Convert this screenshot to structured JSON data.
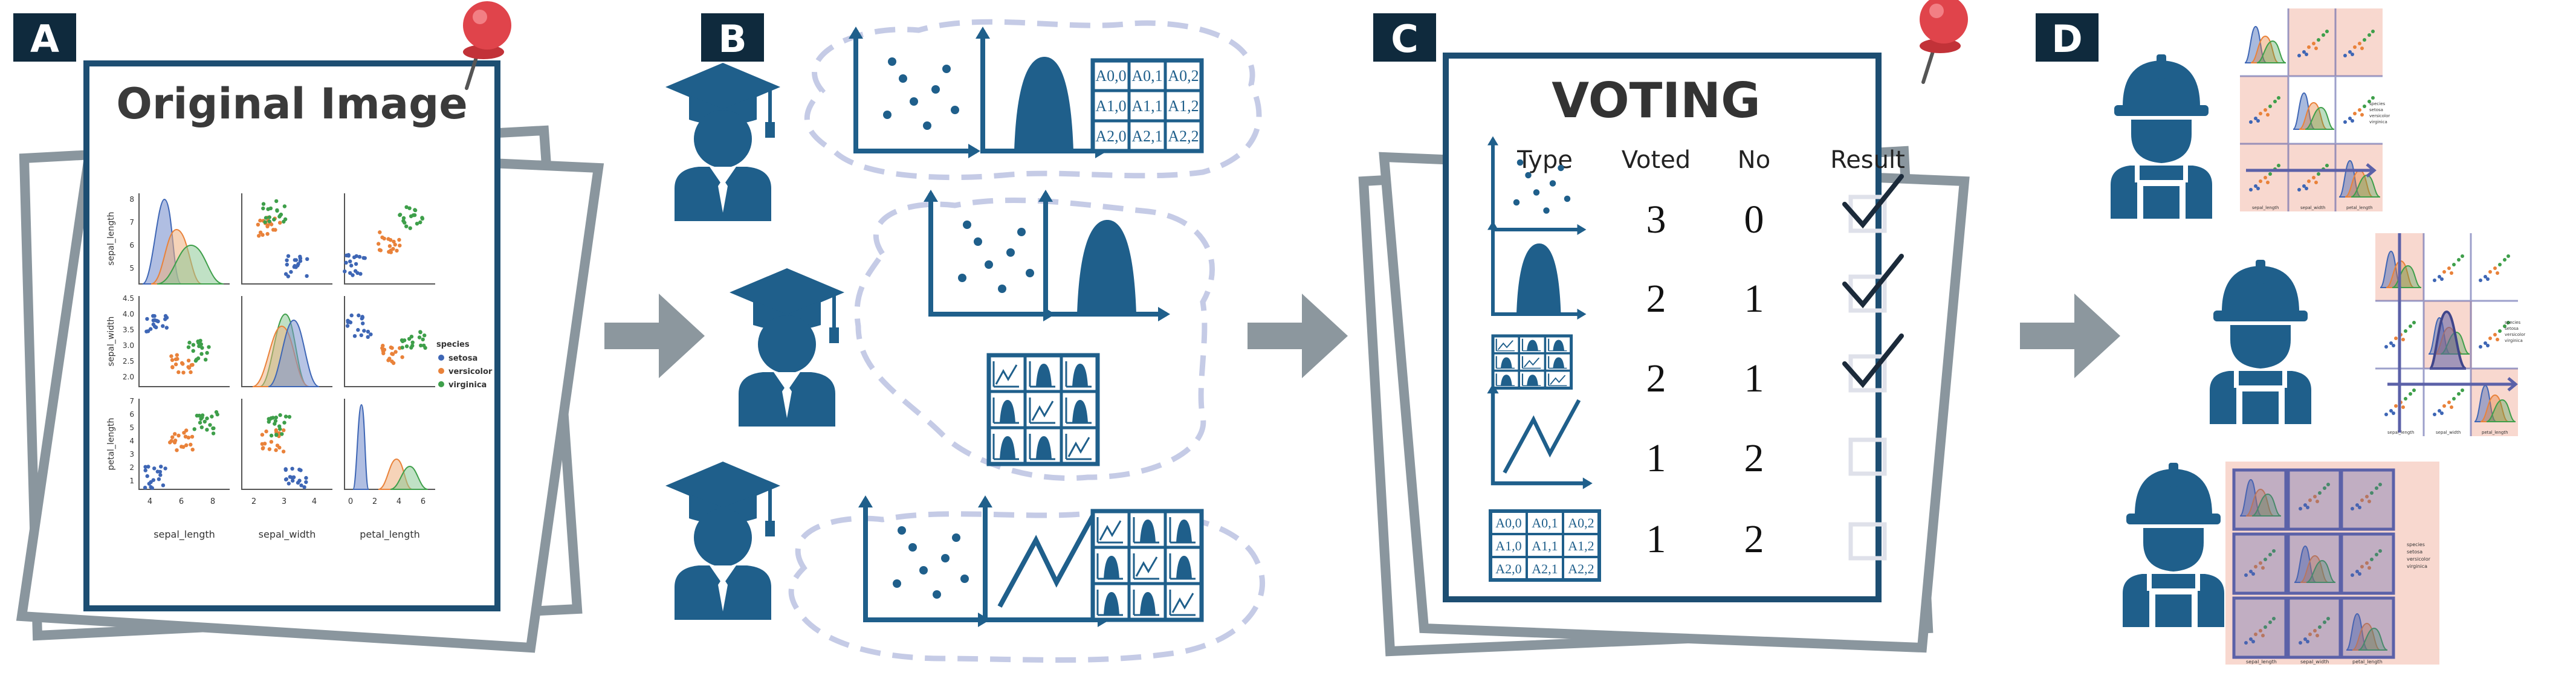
{
  "panels": {
    "a": {
      "letter": "A",
      "title": "Original Image",
      "species_legend": [
        "species",
        "setosa",
        "versicolor",
        "virginica"
      ],
      "xlabels": [
        "sepal_length",
        "sepal_width",
        "petal_length"
      ],
      "ylabels": [
        "sepal_length",
        "sepal_width",
        "petal_length"
      ],
      "yticks_row1": [
        "8",
        "7",
        "6",
        "5"
      ],
      "yticks_row2": [
        "4.5",
        "4.0",
        "3.5",
        "3.0",
        "2.5",
        "2.0"
      ],
      "yticks_row3": [
        "7",
        "6",
        "5",
        "4",
        "3",
        "2",
        "1"
      ],
      "xticks_1": [
        "4",
        "6",
        "8"
      ],
      "xticks_2": [
        "2",
        "3",
        "4"
      ],
      "xticks_3": [
        "0",
        "2",
        "4",
        "6"
      ]
    },
    "b": {
      "letter": "B",
      "matrix": [
        "A0,0",
        "A0,1",
        "A0,2",
        "A1,0",
        "A1,1",
        "A1,2",
        "A2,0",
        "A2,1",
        "A2,2"
      ]
    },
    "c": {
      "letter": "C",
      "title": "VOTING",
      "headers": {
        "type": "Type",
        "voted": "Voted",
        "no": "No",
        "result": "Result"
      },
      "rows": [
        {
          "voted": "3",
          "no": "0",
          "accepted": true
        },
        {
          "voted": "2",
          "no": "1",
          "accepted": true
        },
        {
          "voted": "2",
          "no": "1",
          "accepted": true
        },
        {
          "voted": "1",
          "no": "2",
          "accepted": false
        },
        {
          "voted": "1",
          "no": "2",
          "accepted": false
        }
      ],
      "matrix": [
        "A0,0",
        "A0,1",
        "A0,2",
        "A1,0",
        "A1,1",
        "A1,2",
        "A2,0",
        "A2,1",
        "A2,2"
      ]
    },
    "d": {
      "letter": "D",
      "mini_legend": [
        "species",
        "setosa",
        "versicolor",
        "virginica"
      ],
      "mini_xlabels": [
        "sepal_length",
        "sepal_width",
        "petal_length"
      ]
    }
  },
  "colors": {
    "navy": "#1f5f8b",
    "dark": "#0f2a3d",
    "frame": "#1d4e72",
    "paper_edge": "#8a969e",
    "arrow": "#8c979e",
    "cloud": "#c5cbe6",
    "pin": "#e0444b",
    "setosa": "#3e66b5",
    "versicolor": "#e9823a",
    "virginica": "#3e9f4a",
    "highlight": "#f8d8cf",
    "overlay": "#5b61a8",
    "checkbox": "#dfe1ea"
  },
  "icons": [
    "push-pin-icon",
    "graduation-cap-icon",
    "student-icon",
    "hard-hat-worker-icon",
    "scatter-plot-icon",
    "density-plot-icon",
    "line-plot-icon",
    "matrix-grid-icon",
    "plot-grid-icon",
    "checkmark-icon",
    "empty-checkbox-icon",
    "flow-arrow-icon"
  ]
}
